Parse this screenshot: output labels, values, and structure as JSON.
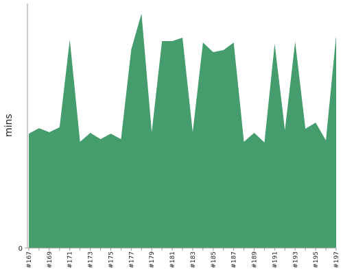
{
  "chart_data": {
    "type": "area",
    "y_label": "mins",
    "categories": [
      "#167",
      null,
      "#169",
      null,
      "#171",
      null,
      "#173",
      null,
      "#175",
      null,
      "#177",
      null,
      "#179",
      null,
      "#181",
      null,
      "#183",
      null,
      "#185",
      null,
      "#187",
      null,
      "#189",
      null,
      "#191",
      null,
      "#193",
      null,
      "#195",
      null,
      "#197"
    ],
    "values": [
      5.61,
      5.88,
      5.68,
      5.92,
      10.22,
      5.21,
      5.65,
      5.34,
      5.61,
      5.34,
      9.75,
      11.5,
      5.68,
      10.15,
      10.15,
      10.32,
      5.68,
      10.08,
      9.61,
      9.71,
      10.08,
      5.21,
      5.65,
      5.18,
      10.02,
      5.78,
      10.12,
      5.85,
      6.15,
      5.28,
      10.42
    ],
    "color": "#459c6c",
    "ylim": [
      0,
      12
    ],
    "yticks": [
      0
    ]
  }
}
